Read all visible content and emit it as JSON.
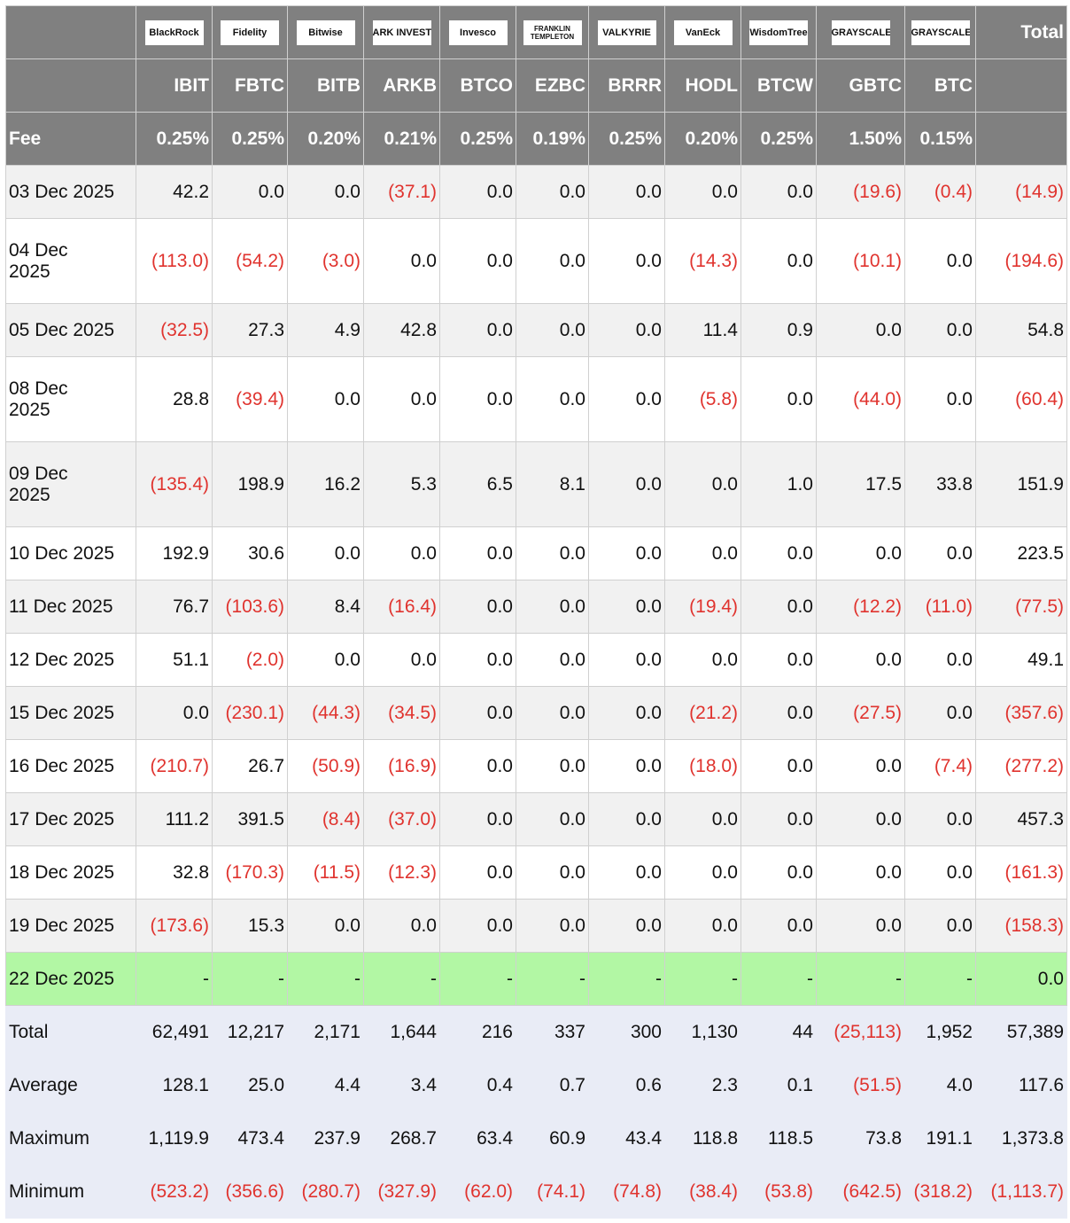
{
  "header": {
    "logos": [
      "BlackRock",
      "Fidelity",
      "Bitwise",
      "ARK INVEST",
      "Invesco",
      "FRANKLIN TEMPLETON",
      "VALKYRIE",
      "VanEck",
      "WisdomTree",
      "GRAYSCALE",
      "GRAYSCALE"
    ],
    "total_label": "Total",
    "tickers": [
      "IBIT",
      "FBTC",
      "BITB",
      "ARKB",
      "BTCO",
      "EZBC",
      "BRRR",
      "HODL",
      "BTCW",
      "GBTC",
      "BTC"
    ],
    "fee_label": "Fee",
    "fees": [
      "0.25%",
      "0.25%",
      "0.20%",
      "0.21%",
      "0.25%",
      "0.19%",
      "0.25%",
      "0.20%",
      "0.25%",
      "1.50%",
      "0.15%"
    ]
  },
  "rows": [
    {
      "date": "03 Dec 2025",
      "values": [
        "42.2",
        "0.0",
        "0.0",
        "(37.1)",
        "0.0",
        "0.0",
        "0.0",
        "0.0",
        "0.0",
        "(19.6)",
        "(0.4)",
        "(14.9)"
      ]
    },
    {
      "date": "04 Dec 2025",
      "values": [
        "(113.0)",
        "(54.2)",
        "(3.0)",
        "0.0",
        "0.0",
        "0.0",
        "0.0",
        "(14.3)",
        "0.0",
        "(10.1)",
        "0.0",
        "(194.6)"
      ]
    },
    {
      "date": "05 Dec 2025",
      "values": [
        "(32.5)",
        "27.3",
        "4.9",
        "42.8",
        "0.0",
        "0.0",
        "0.0",
        "11.4",
        "0.9",
        "0.0",
        "0.0",
        "54.8"
      ]
    },
    {
      "date": "08 Dec 2025",
      "values": [
        "28.8",
        "(39.4)",
        "0.0",
        "0.0",
        "0.0",
        "0.0",
        "0.0",
        "(5.8)",
        "0.0",
        "(44.0)",
        "0.0",
        "(60.4)"
      ]
    },
    {
      "date": "09 Dec 2025",
      "values": [
        "(135.4)",
        "198.9",
        "16.2",
        "5.3",
        "6.5",
        "8.1",
        "0.0",
        "0.0",
        "1.0",
        "17.5",
        "33.8",
        "151.9"
      ]
    },
    {
      "date": "10 Dec 2025",
      "values": [
        "192.9",
        "30.6",
        "0.0",
        "0.0",
        "0.0",
        "0.0",
        "0.0",
        "0.0",
        "0.0",
        "0.0",
        "0.0",
        "223.5"
      ]
    },
    {
      "date": "11 Dec 2025",
      "values": [
        "76.7",
        "(103.6)",
        "8.4",
        "(16.4)",
        "0.0",
        "0.0",
        "0.0",
        "(19.4)",
        "0.0",
        "(12.2)",
        "(11.0)",
        "(77.5)"
      ]
    },
    {
      "date": "12 Dec 2025",
      "values": [
        "51.1",
        "(2.0)",
        "0.0",
        "0.0",
        "0.0",
        "0.0",
        "0.0",
        "0.0",
        "0.0",
        "0.0",
        "0.0",
        "49.1"
      ]
    },
    {
      "date": "15 Dec 2025",
      "values": [
        "0.0",
        "(230.1)",
        "(44.3)",
        "(34.5)",
        "0.0",
        "0.0",
        "0.0",
        "(21.2)",
        "0.0",
        "(27.5)",
        "0.0",
        "(357.6)"
      ]
    },
    {
      "date": "16 Dec 2025",
      "values": [
        "(210.7)",
        "26.7",
        "(50.9)",
        "(16.9)",
        "0.0",
        "0.0",
        "0.0",
        "(18.0)",
        "0.0",
        "0.0",
        "(7.4)",
        "(277.2)"
      ]
    },
    {
      "date": "17 Dec 2025",
      "values": [
        "111.2",
        "391.5",
        "(8.4)",
        "(37.0)",
        "0.0",
        "0.0",
        "0.0",
        "0.0",
        "0.0",
        "0.0",
        "0.0",
        "457.3"
      ]
    },
    {
      "date": "18 Dec 2025",
      "values": [
        "32.8",
        "(170.3)",
        "(11.5)",
        "(12.3)",
        "0.0",
        "0.0",
        "0.0",
        "0.0",
        "0.0",
        "0.0",
        "0.0",
        "(161.3)"
      ]
    },
    {
      "date": "19 Dec 2025",
      "values": [
        "(173.6)",
        "15.3",
        "0.0",
        "0.0",
        "0.0",
        "0.0",
        "0.0",
        "0.0",
        "0.0",
        "0.0",
        "0.0",
        "(158.3)"
      ]
    },
    {
      "date": "22 Dec 2025",
      "values": [
        "-",
        "-",
        "-",
        "-",
        "-",
        "-",
        "-",
        "-",
        "-",
        "-",
        "-",
        "0.0"
      ]
    }
  ],
  "summary": [
    {
      "label": "Total",
      "values": [
        "62,491",
        "12,217",
        "2,171",
        "1,644",
        "216",
        "337",
        "300",
        "1,130",
        "44",
        "(25,113)",
        "1,952",
        "57,389"
      ]
    },
    {
      "label": "Average",
      "values": [
        "128.1",
        "25.0",
        "4.4",
        "3.4",
        "0.4",
        "0.7",
        "0.6",
        "2.3",
        "0.1",
        "(51.5)",
        "4.0",
        "117.6"
      ]
    },
    {
      "label": "Maximum",
      "values": [
        "1,119.9",
        "473.4",
        "237.9",
        "268.7",
        "63.4",
        "60.9",
        "43.4",
        "118.8",
        "118.5",
        "73.8",
        "191.1",
        "1,373.8"
      ]
    },
    {
      "label": "Minimum",
      "values": [
        "(523.2)",
        "(356.6)",
        "(280.7)",
        "(327.9)",
        "(62.0)",
        "(74.1)",
        "(74.8)",
        "(38.4)",
        "(53.8)",
        "(642.5)",
        "(318.2)",
        "(1,113.7)"
      ]
    }
  ]
}
